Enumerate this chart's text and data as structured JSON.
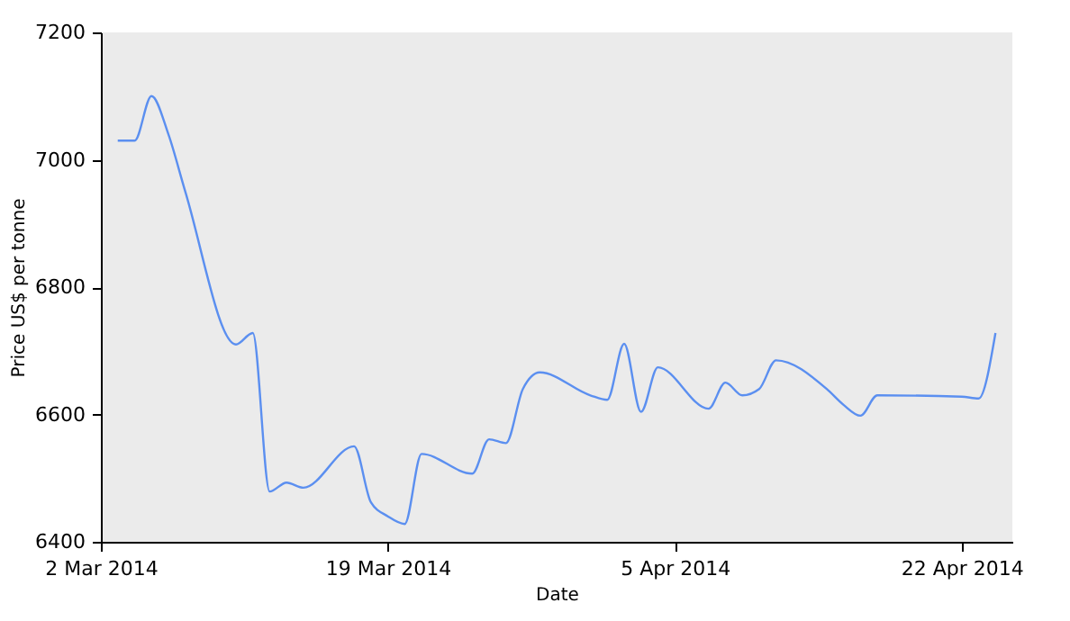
{
  "chart_data": {
    "type": "line",
    "xlabel": "Date",
    "ylabel": "Price US$ per tonne",
    "x": [
      "2014-03-03",
      "2014-03-04",
      "2014-03-05",
      "2014-03-06",
      "2014-03-07",
      "2014-03-10",
      "2014-03-11",
      "2014-03-12",
      "2014-03-13",
      "2014-03-14",
      "2014-03-17",
      "2014-03-18",
      "2014-03-19",
      "2014-03-20",
      "2014-03-21",
      "2014-03-24",
      "2014-03-25",
      "2014-03-26",
      "2014-03-27",
      "2014-03-28",
      "2014-03-31",
      "2014-04-01",
      "2014-04-02",
      "2014-04-03",
      "2014-04-04",
      "2014-04-07",
      "2014-04-08",
      "2014-04-09",
      "2014-04-10",
      "2014-04-11",
      "2014-04-14",
      "2014-04-15",
      "2014-04-16",
      "2014-04-17",
      "2014-04-22",
      "2014-04-23",
      "2014-04-24"
    ],
    "series": [
      {
        "color": "#5b8ff0",
        "values": [
          7030,
          7030,
          7100,
          7040,
          6950,
          6710,
          6728,
          6479,
          6493,
          6485,
          6550,
          6462,
          6440,
          6428,
          6538,
          6507,
          6561,
          6555,
          6640,
          6666,
          6630,
          6623,
          6711,
          6604,
          6674,
          6609,
          6650,
          6630,
          6640,
          6685,
          6640,
          6615,
          6598,
          6630,
          6628,
          6625,
          6728
        ]
      }
    ],
    "xlim": [
      "2014-03-02",
      "2014-04-25"
    ],
    "xticks": [
      {
        "value": "2014-03-02",
        "label": "2 Mar 2014"
      },
      {
        "value": "2014-03-19",
        "label": "19 Mar 2014"
      },
      {
        "value": "2014-04-05",
        "label": "5 Apr 2014"
      },
      {
        "value": "2014-04-22",
        "label": "22 Apr 2014"
      }
    ],
    "ylim": [
      6400,
      7200
    ],
    "yticks": [
      6400,
      6600,
      6800,
      7000,
      7200
    ],
    "grid": false,
    "legend": false,
    "marker": "none",
    "line_style": "solid"
  }
}
